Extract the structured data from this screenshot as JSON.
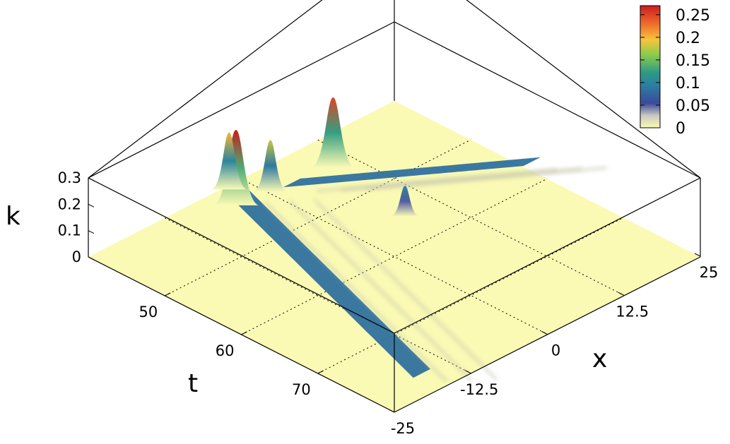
{
  "chart_data": {
    "type": "surface3d",
    "title": "",
    "xlabel": "x",
    "ylabel": "t",
    "zlabel": "k",
    "x_ticks": [
      "-25",
      "-12.5",
      "0",
      "12.5",
      "25"
    ],
    "t_ticks": [
      "50",
      "60",
      "70"
    ],
    "z_ticks": [
      "0",
      "0.1",
      "0.2",
      "0.3"
    ],
    "xlim": [
      -25,
      25
    ],
    "tlim": [
      40,
      80
    ],
    "zlim": [
      0,
      0.3
    ],
    "grid": true,
    "colorbar": {
      "position": "top-right",
      "ticks": [
        "0.25",
        "0.2",
        "0.15",
        "0.1",
        "0.05",
        "0"
      ],
      "range": [
        0,
        0.27
      ],
      "colors": [
        "#fafab4",
        "#3b4a9c",
        "#2c9a86",
        "#8dcc4a",
        "#f7c43c",
        "#f06c2b",
        "#c81e1e"
      ]
    },
    "series": [
      {
        "type": "peak",
        "x": -4,
        "t": 42.5,
        "value": 0.27
      },
      {
        "type": "peak",
        "x": -2,
        "t": 40,
        "value": 0.2
      },
      {
        "type": "peak",
        "x": 1,
        "t": 43,
        "value": 0.18
      },
      {
        "type": "peak",
        "x": 10,
        "t": 44,
        "value": 0.25
      },
      {
        "type": "peak",
        "x": 8,
        "t": 55,
        "value": 0.1
      },
      {
        "type": "ridge",
        "x_start": -4,
        "x_end": -18,
        "t_start": 43,
        "t_end": 78,
        "value": 0.07
      },
      {
        "type": "ridge",
        "x_start": 2,
        "x_end": 25,
        "t_start": 45,
        "t_end": 58,
        "value": 0.07
      }
    ]
  }
}
